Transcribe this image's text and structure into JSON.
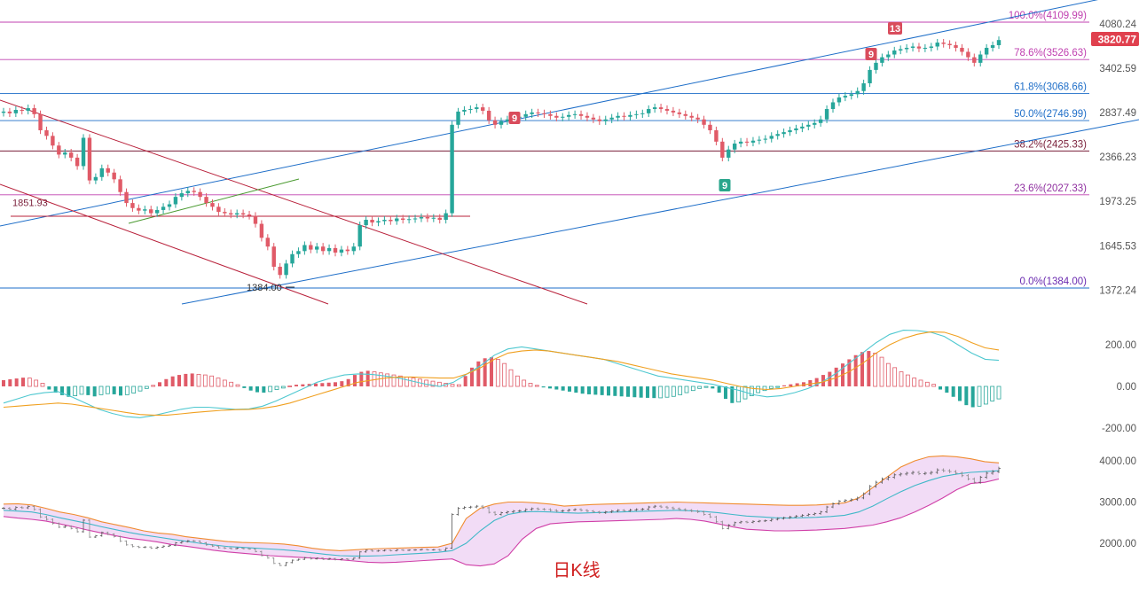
{
  "colors": {
    "up": "#26a69a",
    "down": "#e05a67",
    "fib": "#c040b0",
    "fib_blue": "#1e6ec8",
    "fib_dark": "#7a1f3a",
    "channel_blue": "#1e6ec8",
    "channel_red": "#b8203a",
    "macd_fast": "#4fc8d0",
    "macd_slow": "#f0a020",
    "boll_upper": "#f08c30",
    "boll_mid": "#40b8c8",
    "boll_lower": "#d040a8",
    "boll_fill": "#f2dcf6",
    "axis_text": "#555555",
    "price_badge": "#e0404e",
    "marker_red": "#d94c5c",
    "marker_green": "#2aa68c",
    "title": "#d02020"
  },
  "price_badge": "3820.77",
  "footer_title": "日K线",
  "chart_data": {
    "type": "candlestick",
    "main_axis": {
      "ticks": [
        "4080.24",
        "3402.59",
        "2837.49",
        "2366.23",
        "1973.25",
        "1645.53",
        "1372.24"
      ]
    },
    "fib_levels": [
      {
        "label": "100.0%(4109.99)",
        "value": 4109.99
      },
      {
        "label": "78.6%(3526.63)",
        "value": 3526.63
      },
      {
        "label": "61.8%(3068.66)",
        "value": 3068.66
      },
      {
        "label": "50.0%(2746.99)",
        "value": 2746.99
      },
      {
        "label": "38.2%(2425.33)",
        "value": 2425.33
      },
      {
        "label": "23.6%(2027.33)",
        "value": 2027.33
      },
      {
        "label": "0.0%(1384.00)",
        "value": 1384.0
      }
    ],
    "annotations": [
      {
        "text": "1851.93",
        "value": 1851.93
      },
      {
        "text": "1384.00",
        "value": 1384.0
      }
    ],
    "markers": [
      {
        "text": "9",
        "kind": "red"
      },
      {
        "text": "9",
        "kind": "green"
      },
      {
        "text": "9",
        "kind": "red"
      },
      {
        "text": "13",
        "kind": "red"
      }
    ],
    "closes": [
      2850,
      2830,
      2870,
      2860,
      2890,
      2820,
      2640,
      2580,
      2480,
      2390,
      2410,
      2360,
      2280,
      2560,
      2150,
      2180,
      2260,
      2220,
      2160,
      2050,
      1960,
      1920,
      1900,
      1910,
      1880,
      1905,
      1930,
      1950,
      2010,
      2040,
      2060,
      2050,
      2010,
      1960,
      1930,
      1890,
      1880,
      1870,
      1880,
      1870,
      1860,
      1800,
      1700,
      1640,
      1510,
      1460,
      1530,
      1590,
      1610,
      1650,
      1620,
      1640,
      1610,
      1630,
      1600,
      1620,
      1610,
      1640,
      1790,
      1830,
      1810,
      1820,
      1830,
      1820,
      1840,
      1830,
      1835,
      1840,
      1850,
      1840,
      1845,
      1830,
      1880,
      2700,
      2850,
      2870,
      2880,
      2900,
      2860,
      2750,
      2700,
      2740,
      2760,
      2780,
      2790,
      2820,
      2840,
      2830,
      2820,
      2800,
      2780,
      2790,
      2810,
      2820,
      2800,
      2780,
      2760,
      2740,
      2760,
      2780,
      2800,
      2790,
      2810,
      2820,
      2830,
      2880,
      2900,
      2880,
      2860,
      2840,
      2820,
      2800,
      2780,
      2760,
      2700,
      2640,
      2520,
      2360,
      2440,
      2500,
      2520,
      2510,
      2530,
      2540,
      2550,
      2580,
      2600,
      2620,
      2640,
      2660,
      2680,
      2700,
      2720,
      2760,
      2880,
      2960,
      3020,
      3040,
      3060,
      3100,
      3200,
      3380,
      3480,
      3560,
      3600,
      3660,
      3680,
      3700,
      3720,
      3690,
      3700,
      3720,
      3780,
      3760,
      3740,
      3700,
      3640,
      3560,
      3480,
      3600,
      3700,
      3740,
      3820
    ],
    "macd_axis": {
      "ticks": [
        "200.00",
        "0.00",
        "-200.00"
      ]
    },
    "macd_hist": [
      30,
      34,
      38,
      42,
      40,
      30,
      15,
      -15,
      -30,
      -42,
      -50,
      -45,
      -38,
      -42,
      -48,
      -40,
      -35,
      -38,
      -44,
      -40,
      -32,
      -22,
      -10,
      5,
      20,
      35,
      48,
      55,
      60,
      62,
      58,
      55,
      50,
      40,
      30,
      20,
      8,
      -8,
      -20,
      -28,
      -30,
      -25,
      -15,
      -8,
      2,
      8,
      10,
      12,
      14,
      16,
      18,
      20,
      25,
      35,
      55,
      70,
      75,
      70,
      65,
      60,
      55,
      50,
      45,
      40,
      35,
      30,
      25,
      20,
      15,
      10,
      8,
      50,
      90,
      120,
      135,
      140,
      130,
      110,
      80,
      50,
      30,
      15,
      5,
      -5,
      -10,
      -15,
      -20,
      -25,
      -30,
      -35,
      -38,
      -40,
      -42,
      -44,
      -46,
      -48,
      -50,
      -52,
      -54,
      -55,
      -56,
      -55,
      -52,
      -48,
      -40,
      -30,
      -20,
      -10,
      -5,
      -10,
      -30,
      -60,
      -80,
      -75,
      -60,
      -45,
      -30,
      -20,
      -10,
      -5,
      5,
      10,
      15,
      20,
      30,
      40,
      55,
      70,
      90,
      110,
      130,
      150,
      165,
      170,
      160,
      140,
      110,
      90,
      70,
      55,
      40,
      30,
      20,
      10,
      -15,
      -30,
      -50,
      -70,
      -90,
      -100,
      -95,
      -85,
      -70,
      -60
    ],
    "macd_line_fast": [
      -80,
      -60,
      -40,
      -30,
      -25,
      -50,
      -80,
      -110,
      -130,
      -145,
      -150,
      -140,
      -125,
      -110,
      -100,
      -100,
      -105,
      -110,
      -108,
      -95,
      -70,
      -40,
      -10,
      20,
      40,
      55,
      60,
      58,
      50,
      40,
      25,
      10,
      0,
      20,
      60,
      100,
      150,
      180,
      190,
      180,
      170,
      160,
      150,
      140,
      130,
      110,
      90,
      70,
      50,
      40,
      30,
      20,
      10,
      -5,
      -20,
      -40,
      -50,
      -45,
      -30,
      -10,
      20,
      60,
      110,
      160,
      210,
      250,
      270,
      268,
      260,
      240,
      200,
      160,
      130,
      125
    ],
    "macd_line_slow": [
      -100,
      -95,
      -90,
      -85,
      -80,
      -85,
      -95,
      -105,
      -115,
      -125,
      -135,
      -138,
      -138,
      -132,
      -125,
      -120,
      -115,
      -112,
      -110,
      -105,
      -95,
      -80,
      -60,
      -40,
      -20,
      0,
      20,
      30,
      40,
      45,
      45,
      42,
      40,
      40,
      60,
      90,
      130,
      160,
      170,
      175,
      170,
      160,
      150,
      140,
      130,
      120,
      105,
      90,
      75,
      60,
      50,
      40,
      30,
      15,
      0,
      -10,
      -15,
      -10,
      0,
      10,
      20,
      40,
      70,
      110,
      160,
      200,
      230,
      250,
      262,
      260,
      240,
      210,
      185,
      175
    ],
    "boll_axis": {
      "ticks": [
        "4000.00",
        "3000.00",
        "2000.00"
      ]
    },
    "boll_upper": [
      2950,
      2960,
      2930,
      2850,
      2760,
      2700,
      2620,
      2520,
      2450,
      2380,
      2300,
      2250,
      2220,
      2160,
      2120,
      2080,
      2040,
      2020,
      2010,
      2000,
      1980,
      1940,
      1880,
      1840,
      1820,
      1840,
      1860,
      1870,
      1880,
      1890,
      1900,
      1910,
      2000,
      2600,
      2850,
      2950,
      3000,
      3000,
      2980,
      2950,
      2900,
      2920,
      2940,
      2950,
      2960,
      2970,
      2980,
      2990,
      3000,
      2990,
      2980,
      2970,
      2960,
      2950,
      2940,
      2930,
      2920,
      2920,
      2930,
      2950,
      2980,
      3100,
      3350,
      3600,
      3850,
      4000,
      4100,
      4120,
      4100,
      4050,
      3980,
      3950
    ],
    "boll_mid": [
      2800,
      2780,
      2760,
      2700,
      2620,
      2550,
      2480,
      2400,
      2330,
      2260,
      2200,
      2150,
      2100,
      2050,
      2000,
      1960,
      1920,
      1900,
      1880,
      1860,
      1840,
      1810,
      1770,
      1730,
      1700,
      1690,
      1690,
      1700,
      1720,
      1740,
      1760,
      1780,
      1820,
      2000,
      2300,
      2550,
      2700,
      2760,
      2770,
      2760,
      2740,
      2730,
      2740,
      2750,
      2760,
      2770,
      2780,
      2790,
      2800,
      2790,
      2770,
      2740,
      2700,
      2660,
      2640,
      2620,
      2610,
      2620,
      2630,
      2650,
      2680,
      2760,
      2900,
      3080,
      3250,
      3400,
      3520,
      3620,
      3680,
      3720,
      3740,
      3760
    ],
    "boll_lower": [
      2650,
      2610,
      2580,
      2540,
      2470,
      2400,
      2320,
      2250,
      2180,
      2120,
      2080,
      2030,
      1970,
      1930,
      1880,
      1830,
      1790,
      1760,
      1730,
      1700,
      1680,
      1660,
      1640,
      1620,
      1600,
      1570,
      1540,
      1530,
      1540,
      1560,
      1580,
      1600,
      1620,
      1480,
      1450,
      1500,
      1700,
      2100,
      2360,
      2470,
      2500,
      2520,
      2530,
      2540,
      2550,
      2560,
      2570,
      2580,
      2600,
      2580,
      2540,
      2470,
      2400,
      2340,
      2320,
      2300,
      2300,
      2310,
      2320,
      2340,
      2360,
      2400,
      2440,
      2520,
      2620,
      2760,
      2920,
      3100,
      3300,
      3450,
      3480,
      3560
    ]
  }
}
